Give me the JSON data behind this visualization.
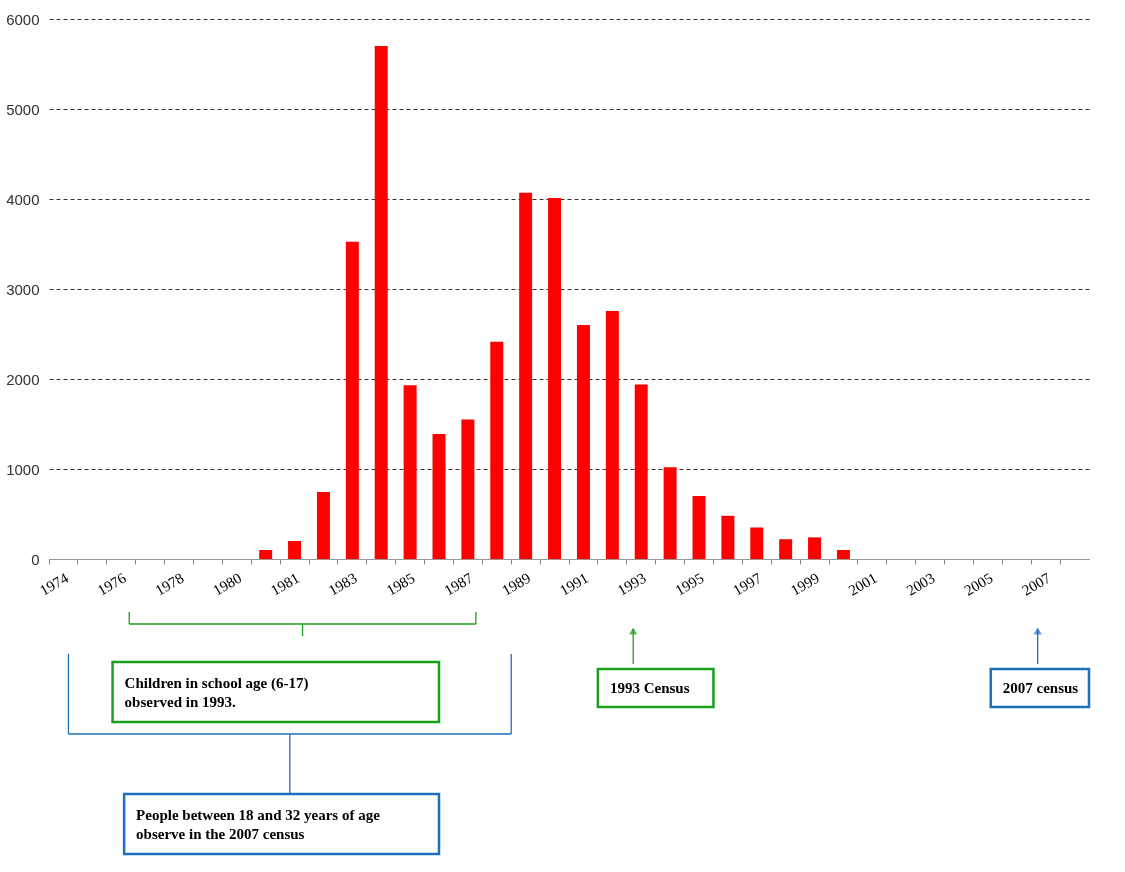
{
  "chart_data": {
    "type": "bar",
    "categories": [
      "1974",
      null,
      "1976",
      null,
      "1978",
      null,
      "1980",
      null,
      "1981",
      null,
      "1983",
      null,
      "1985",
      null,
      "1987",
      null,
      "1989",
      null,
      "1991",
      null,
      "1993",
      null,
      "1995",
      null,
      "1997",
      null,
      "1999",
      null,
      "2001",
      null,
      "2003",
      null,
      "2005",
      null,
      "2007",
      null
    ],
    "values": [
      null,
      null,
      null,
      null,
      null,
      null,
      null,
      100,
      200,
      745,
      3525,
      5700,
      1930,
      1390,
      1550,
      2415,
      4070,
      4010,
      2600,
      2755,
      1940,
      1020,
      700,
      480,
      350,
      220,
      240,
      100,
      null,
      null,
      null,
      null,
      null,
      null,
      null,
      null
    ],
    "color": "#ff0000",
    "ylim": [
      0,
      6000
    ],
    "yticks": [
      0,
      1000,
      2000,
      3000,
      4000,
      5000,
      6000
    ],
    "grid": "y",
    "annotations": [
      "Children in school age (6-17) observed in 1993.",
      "1993 Census",
      "2007 census",
      "People between 18 and 32 years of age observe in the 2007 census"
    ]
  }
}
